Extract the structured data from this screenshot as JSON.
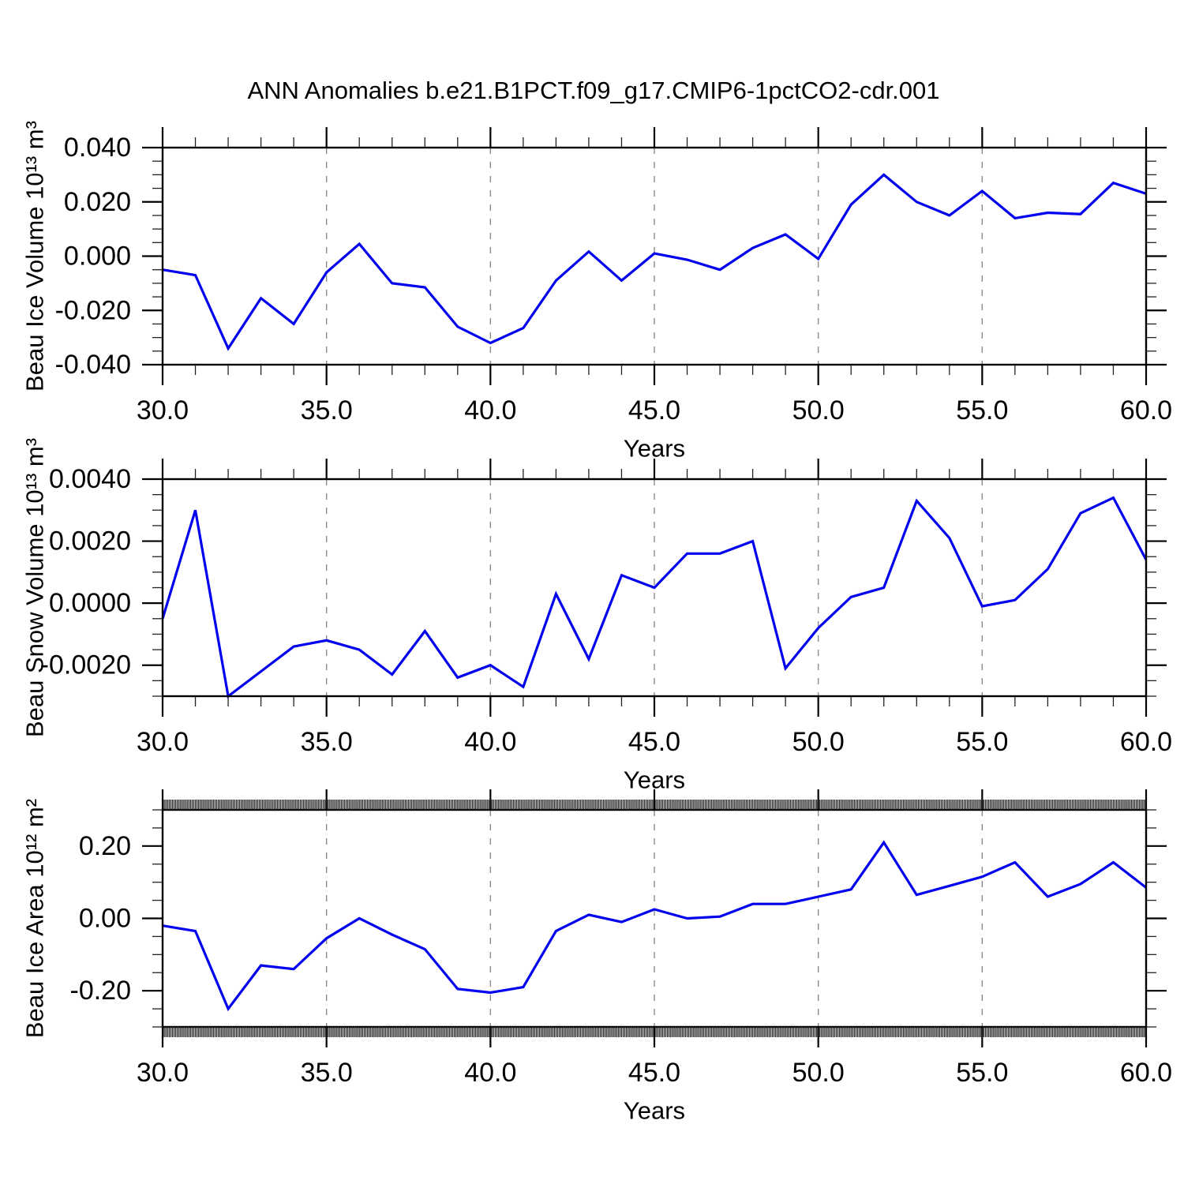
{
  "title": "ANN Anomalies b.e21.B1PCT.f09_g17.CMIP6-1pctCO2-cdr.001",
  "background_color": "#ffffff",
  "accent_line_color": "#0000EE",
  "chart_data": [
    {
      "type": "line",
      "title": "",
      "xlabel": "Years",
      "ylabel": "Beau Ice Volume 10¹³ m³",
      "x_start": 30,
      "x_step": 1,
      "xlim": [
        30,
        60
      ],
      "ylim": [
        -0.04,
        0.04
      ],
      "grid": "vertical-dashed-at-x-majors",
      "legend": "none",
      "line_color": "#0000EE",
      "xticks": {
        "major_values": [
          30,
          35,
          40,
          45,
          50,
          55,
          60
        ],
        "major_labels": [
          "30.0",
          "35.0",
          "40.0",
          "45.0",
          "50.0",
          "55.0",
          "60.0"
        ],
        "minor_step": 1
      },
      "yticks": {
        "minor_step": 0.005,
        "major": [
          {
            "v": 0.04,
            "label": "0.040"
          },
          {
            "v": 0.02,
            "label": "0.020"
          },
          {
            "v": 0.0,
            "label": "0.000"
          },
          {
            "v": -0.02,
            "label": "-0.020"
          },
          {
            "v": -0.04,
            "label": "-0.040"
          }
        ]
      },
      "values": [
        -0.005,
        -0.007,
        -0.034,
        -0.0155,
        -0.025,
        -0.006,
        0.0045,
        -0.01,
        -0.0115,
        -0.026,
        -0.032,
        -0.0265,
        -0.009,
        0.0017,
        -0.009,
        0.001,
        -0.0013,
        -0.005,
        0.003,
        0.008,
        -0.001,
        0.019,
        0.03,
        0.02,
        0.015,
        0.024,
        0.014,
        0.016,
        0.0155,
        0.027,
        0.023
      ]
    },
    {
      "type": "line",
      "title": "",
      "xlabel": "Years",
      "ylabel": "Beau Snow Volume 10¹³ m³",
      "x_start": 30,
      "x_step": 1,
      "xlim": [
        30,
        60
      ],
      "ylim": [
        -0.003,
        0.004
      ],
      "grid": "vertical-dashed-at-x-majors",
      "legend": "none",
      "line_color": "#0000EE",
      "xticks": {
        "major_values": [
          30,
          35,
          40,
          45,
          50,
          55,
          60
        ],
        "major_labels": [
          "30.0",
          "35.0",
          "40.0",
          "45.0",
          "50.0",
          "55.0",
          "60.0"
        ],
        "minor_step": 1
      },
      "yticks": {
        "minor_step": 0.0005,
        "major": [
          {
            "v": 0.004,
            "label": "0.0040"
          },
          {
            "v": 0.002,
            "label": "0.0020"
          },
          {
            "v": 0.0,
            "label": "0.0000"
          },
          {
            "v": -0.002,
            "label": "-0.0020"
          }
        ]
      },
      "values": [
        -0.0005,
        0.003,
        -0.003,
        -0.0022,
        -0.0014,
        -0.0012,
        -0.0015,
        -0.0023,
        -0.0009,
        -0.0024,
        -0.002,
        -0.0027,
        0.0003,
        -0.0018,
        0.0009,
        0.0005,
        0.0016,
        0.0016,
        0.002,
        -0.0021,
        -0.0008,
        0.0002,
        0.0005,
        0.0033,
        0.0021,
        -0.0001,
        0.0001,
        0.0011,
        0.0029,
        0.0034,
        0.0014
      ]
    },
    {
      "type": "line",
      "title": "",
      "xlabel": "Years",
      "ylabel": "Beau Ice Area 10¹² m²",
      "x_start": 30,
      "x_step": 1,
      "xlim": [
        30,
        60
      ],
      "ylim": [
        -0.3,
        0.3
      ],
      "grid": "vertical-dashed-at-x-majors",
      "legend": "none",
      "line_color": "#0000EE",
      "xticks": {
        "major_values": [
          30,
          35,
          40,
          45,
          50,
          55,
          60
        ],
        "major_labels": [
          "30.0",
          "35.0",
          "40.0",
          "45.0",
          "50.0",
          "55.0",
          "60.0"
        ],
        "minor_step": 0.05,
        "x_minor_step": 1
      },
      "yticks": {
        "minor_step": 0.05,
        "major": [
          {
            "v": 0.2,
            "label": "0.20"
          },
          {
            "v": 0.0,
            "label": "0.00"
          },
          {
            "v": -0.2,
            "label": "-0.20"
          }
        ]
      },
      "values": [
        -0.02,
        -0.035,
        -0.25,
        -0.13,
        -0.14,
        -0.055,
        0.0,
        -0.045,
        -0.085,
        -0.195,
        -0.205,
        -0.19,
        -0.035,
        0.01,
        -0.01,
        0.025,
        0.0,
        0.005,
        0.04,
        0.04,
        0.06,
        0.08,
        0.21,
        0.065,
        0.09,
        0.115,
        0.155,
        0.06,
        0.095,
        0.155,
        0.085
      ]
    }
  ]
}
